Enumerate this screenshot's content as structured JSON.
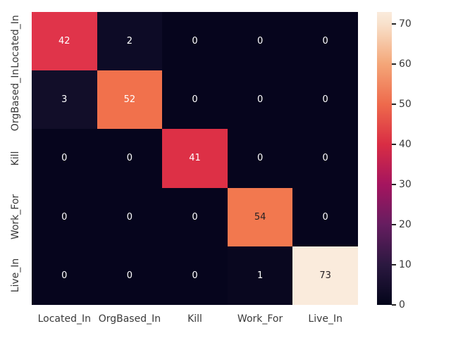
{
  "figure": {
    "background": "#ffffff",
    "tick_label_color": "#3a3a3a",
    "annot_color_on_dark": "#ffffff",
    "annot_color_on_light": "#262123"
  },
  "chart_data": {
    "type": "heatmap",
    "title": "",
    "xlabel": "",
    "ylabel": "",
    "x_tick_labels": [
      "Located_In",
      "OrgBased_In",
      "Kill",
      "Work_For",
      "Live_In"
    ],
    "y_tick_labels": [
      "Located_In",
      "OrgBased_In",
      "Kill",
      "Work_For",
      "Live_In"
    ],
    "matrix": [
      [
        42,
        2,
        0,
        0,
        0
      ],
      [
        3,
        52,
        0,
        0,
        0
      ],
      [
        0,
        0,
        41,
        0,
        0
      ],
      [
        0,
        0,
        0,
        54,
        0
      ],
      [
        0,
        0,
        0,
        1,
        73
      ]
    ],
    "cell_colors": [
      [
        "#e0344a",
        "#0d0b26",
        "#06051d",
        "#06051d",
        "#06051d"
      ],
      [
        "#120e29",
        "#f1714c",
        "#06051d",
        "#06051d",
        "#06051d"
      ],
      [
        "#06051d",
        "#06051d",
        "#dd3046",
        "#06051d",
        "#06051d"
      ],
      [
        "#06051d",
        "#06051d",
        "#06051d",
        "#f2784f",
        "#06051d"
      ],
      [
        "#06051d",
        "#06051d",
        "#06051d",
        "#09071f",
        "#faebdc"
      ]
    ],
    "vmin": 0,
    "vmax": 73,
    "colormap": "rocket",
    "colorbar_ticks": [
      0,
      10,
      20,
      30,
      40,
      50,
      60,
      70
    ],
    "colorbar_gradient": [
      {
        "pos": 0.0,
        "color": "#03051a"
      },
      {
        "pos": 0.137,
        "color": "#2b1840"
      },
      {
        "pos": 0.274,
        "color": "#661d60"
      },
      {
        "pos": 0.411,
        "color": "#a5155f"
      },
      {
        "pos": 0.548,
        "color": "#d92d44"
      },
      {
        "pos": 0.685,
        "color": "#ee6a4c"
      },
      {
        "pos": 0.822,
        "color": "#f4a678"
      },
      {
        "pos": 0.959,
        "color": "#f8e1cb"
      },
      {
        "pos": 1.0,
        "color": "#faebdd"
      }
    ],
    "legend_position": "right-colorbar",
    "grid": false
  }
}
